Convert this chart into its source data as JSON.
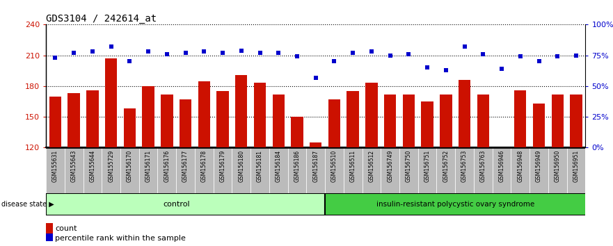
{
  "title": "GDS3104 / 242614_at",
  "samples": [
    "GSM155631",
    "GSM155643",
    "GSM155644",
    "GSM155729",
    "GSM156170",
    "GSM156171",
    "GSM156176",
    "GSM156177",
    "GSM156178",
    "GSM156179",
    "GSM156180",
    "GSM156181",
    "GSM156184",
    "GSM156186",
    "GSM156187",
    "GSM156510",
    "GSM156511",
    "GSM156512",
    "GSM156749",
    "GSM156750",
    "GSM156751",
    "GSM156752",
    "GSM156753",
    "GSM156763",
    "GSM156946",
    "GSM156948",
    "GSM156949",
    "GSM156950",
    "GSM156951"
  ],
  "bar_values": [
    170,
    173,
    176,
    207,
    158,
    180,
    172,
    167,
    185,
    175,
    191,
    183,
    172,
    150,
    125,
    167,
    175,
    183,
    172,
    172,
    165,
    172,
    186,
    172,
    120,
    176,
    163,
    172,
    172
  ],
  "percentile_values": [
    73,
    77,
    78,
    82,
    70,
    78,
    76,
    77,
    78,
    77,
    79,
    77,
    77,
    74,
    57,
    70,
    77,
    78,
    75,
    76,
    65,
    63,
    82,
    76,
    64,
    74,
    70,
    74,
    75
  ],
  "n_control": 15,
  "ylim_left": [
    120,
    240
  ],
  "ylim_right": [
    0,
    100
  ],
  "yticks_left": [
    120,
    150,
    180,
    210,
    240
  ],
  "yticks_right": [
    0,
    25,
    50,
    75,
    100
  ],
  "yticklabels_right": [
    "0%",
    "25%",
    "50%",
    "75%",
    "100%"
  ],
  "bar_color": "#cc1100",
  "dot_color": "#0000cc",
  "control_bg": "#bbffbb",
  "pcos_bg": "#44cc44",
  "xlabel_color": "#cc1100",
  "ylabel_right_color": "#0000cc",
  "tick_bg": "#bbbbbb",
  "legend_count_color": "#cc1100",
  "legend_pct_color": "#0000cc",
  "fig_width": 8.81,
  "fig_height": 3.54
}
